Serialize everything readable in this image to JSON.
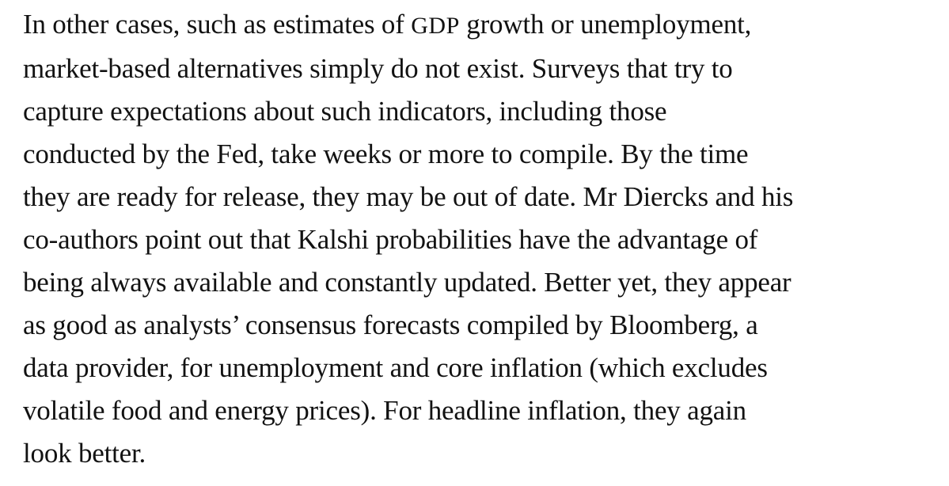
{
  "article": {
    "paragraph": {
      "lines": [
        {
          "before": "In other cases, such as estimates of ",
          "abbr": "GDP",
          "after": " growth or unemployment,"
        },
        "market-based alternatives simply do not exist. Surveys that try to",
        "capture expectations about such indicators, including those",
        "conducted by the Fed, take weeks or more to compile. By the time",
        "they are ready for release, they may be out of date. Mr Diercks and his",
        "co-authors point out that Kalshi probabilities have the advantage of",
        "being always available and constantly updated. Better yet, they appear",
        "as good as analysts’ consensus forecasts compiled by Bloomberg, a",
        "data provider, for unemployment and core inflation (which excludes",
        "volatile food and energy prices). For headline inflation, they again",
        "look better."
      ]
    }
  }
}
